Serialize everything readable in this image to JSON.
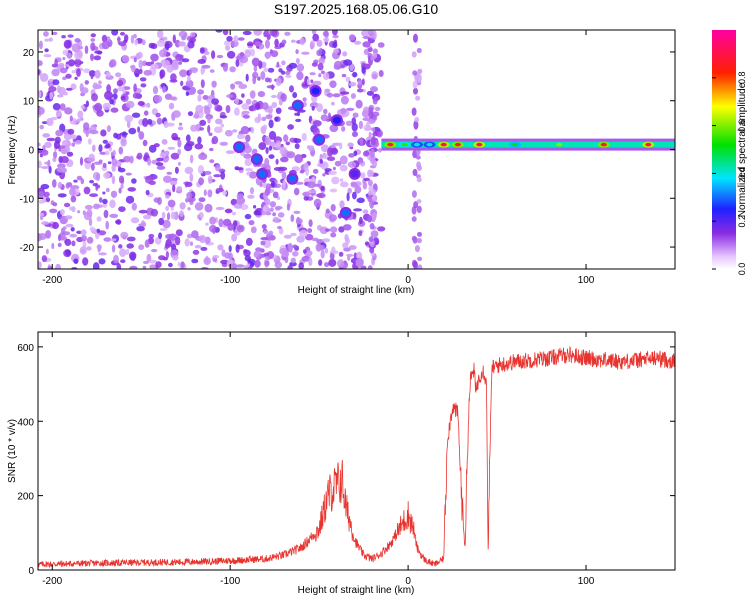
{
  "title": "S197.2025.168.05.06.G10",
  "colors": {
    "snr_line": "#e8332e",
    "axis": "#000000",
    "background": "#ffffff"
  },
  "chart_data": [
    {
      "type": "heatmap",
      "xlabel": "Height of straight line (km)",
      "ylabel": "Frequency (Hz)",
      "xlim": [
        -208,
        150
      ],
      "ylim": [
        -24.5,
        24.5
      ],
      "x_ticks": [
        "-200",
        "-100",
        "0",
        "100"
      ],
      "y_ticks": [
        "20",
        "10",
        "0",
        "-10",
        "-20"
      ],
      "colorbar": {
        "label": "Normalized spectral amplitude",
        "range": [
          0,
          1
        ],
        "ticks": [
          "0.0",
          "0.2",
          "0.4",
          "0.6",
          "0.8"
        ],
        "colormap": "rainbow (white-violet-blue-cyan-green-yellow-red-magenta)"
      },
      "features": {
        "noise_region_x": [
          -208,
          -15
        ],
        "signal_band_frequency_hz": 1,
        "signal_band_x": [
          -15,
          150
        ],
        "blobs": [
          {
            "x": -95,
            "y": 0.5,
            "a": 0.3
          },
          {
            "x": -85,
            "y": -2,
            "a": 0.3
          },
          {
            "x": -82,
            "y": -5,
            "a": 0.3
          },
          {
            "x": -65,
            "y": -6,
            "a": 0.3
          },
          {
            "x": -62,
            "y": 9,
            "a": 0.3
          },
          {
            "x": -52,
            "y": 12,
            "a": 0.25
          },
          {
            "x": -50,
            "y": 2,
            "a": 0.3
          },
          {
            "x": -40,
            "y": 6,
            "a": 0.25
          },
          {
            "x": -35,
            "y": -13,
            "a": 0.3
          },
          {
            "x": -30,
            "y": -5,
            "a": 0.2
          }
        ],
        "band_peaks": [
          {
            "x": -10,
            "a": 0.85
          },
          {
            "x": -2,
            "a": 0.55
          },
          {
            "x": 5,
            "a": 0.4
          },
          {
            "x": 12,
            "a": 0.4
          },
          {
            "x": 20,
            "a": 0.9
          },
          {
            "x": 28,
            "a": 0.85
          },
          {
            "x": 40,
            "a": 0.9
          },
          {
            "x": 60,
            "a": 0.5
          },
          {
            "x": 85,
            "a": 0.6
          },
          {
            "x": 110,
            "a": 0.85
          },
          {
            "x": 135,
            "a": 0.9
          }
        ]
      }
    },
    {
      "type": "line",
      "xlabel": "Height of straight line (km)",
      "ylabel": "SNR (10 * v/v)",
      "xlim": [
        -208,
        150
      ],
      "ylim": [
        0,
        640
      ],
      "x_ticks": [
        "-200",
        "-100",
        "0",
        "100"
      ],
      "y_ticks": [
        "600",
        "400",
        "200",
        "0"
      ],
      "series": [
        {
          "x": [
            -208,
            -180,
            -150,
            -120,
            -100,
            -80,
            -70,
            -60,
            -50,
            -45,
            -40,
            -37,
            -35,
            -32,
            -30,
            -25,
            -20,
            -15,
            -10,
            -5,
            0,
            3,
            5,
            8,
            10,
            15,
            20,
            22,
            25,
            28,
            30,
            32,
            34,
            35,
            37,
            38,
            40,
            42,
            44,
            45,
            47,
            50,
            55,
            60,
            70,
            80,
            90,
            100,
            110,
            120,
            130,
            140,
            150
          ],
          "y": [
            15,
            18,
            20,
            22,
            25,
            30,
            40,
            60,
            110,
            200,
            230,
            240,
            170,
            120,
            80,
            40,
            30,
            45,
            70,
            110,
            150,
            110,
            60,
            35,
            25,
            15,
            30,
            350,
            440,
            420,
            200,
            60,
            420,
            510,
            540,
            480,
            520,
            540,
            510,
            60,
            540,
            550,
            555,
            560,
            565,
            570,
            580,
            570,
            565,
            560,
            565,
            570,
            560
          ]
        }
      ]
    }
  ]
}
